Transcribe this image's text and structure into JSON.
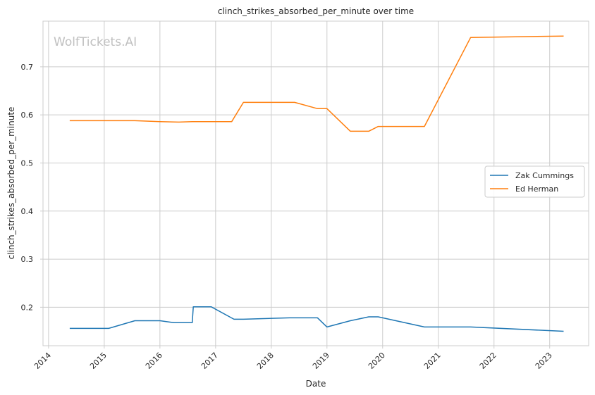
{
  "chart_data": {
    "type": "line",
    "title": "clinch_strikes_absorbed_per_minute over time",
    "xlabel": "Date",
    "ylabel": "clinch_strikes_absorbed_per_minute",
    "watermark": "WolfTickets.AI",
    "xlim": [
      2013.9,
      2023.7
    ],
    "ylim": [
      0.12,
      0.795
    ],
    "x_ticks": [
      2014,
      2015,
      2016,
      2017,
      2018,
      2019,
      2020,
      2021,
      2022,
      2023
    ],
    "x_tick_labels": [
      "2014",
      "2015",
      "2016",
      "2017",
      "2018",
      "2019",
      "2020",
      "2021",
      "2022",
      "2023"
    ],
    "y_ticks": [
      0.2,
      0.3,
      0.4,
      0.5,
      0.6,
      0.7
    ],
    "y_tick_labels": [
      "0.2",
      "0.3",
      "0.4",
      "0.5",
      "0.6",
      "0.7"
    ],
    "grid": true,
    "legend_position": "center-right",
    "series": [
      {
        "name": "Zak Cummings",
        "color": "#1f77b4",
        "points": [
          [
            2014.38,
            0.156
          ],
          [
            2015.08,
            0.156
          ],
          [
            2015.55,
            0.172
          ],
          [
            2016.0,
            0.172
          ],
          [
            2016.25,
            0.168
          ],
          [
            2016.58,
            0.168
          ],
          [
            2016.6,
            0.201
          ],
          [
            2016.92,
            0.201
          ],
          [
            2017.33,
            0.175
          ],
          [
            2017.5,
            0.175
          ],
          [
            2018.33,
            0.178
          ],
          [
            2018.83,
            0.178
          ],
          [
            2019.0,
            0.159
          ],
          [
            2019.42,
            0.172
          ],
          [
            2019.75,
            0.18
          ],
          [
            2019.92,
            0.18
          ],
          [
            2020.75,
            0.159
          ],
          [
            2021.58,
            0.159
          ],
          [
            2023.25,
            0.15
          ]
        ]
      },
      {
        "name": "Ed Herman",
        "color": "#ff7f0e",
        "points": [
          [
            2014.38,
            0.588
          ],
          [
            2015.55,
            0.588
          ],
          [
            2016.0,
            0.586
          ],
          [
            2016.33,
            0.585
          ],
          [
            2016.58,
            0.586
          ],
          [
            2017.29,
            0.586
          ],
          [
            2017.5,
            0.626
          ],
          [
            2018.42,
            0.626
          ],
          [
            2018.83,
            0.613
          ],
          [
            2019.0,
            0.613
          ],
          [
            2019.42,
            0.566
          ],
          [
            2019.75,
            0.566
          ],
          [
            2019.92,
            0.576
          ],
          [
            2020.75,
            0.576
          ],
          [
            2021.58,
            0.761
          ],
          [
            2023.25,
            0.764
          ]
        ]
      }
    ]
  }
}
